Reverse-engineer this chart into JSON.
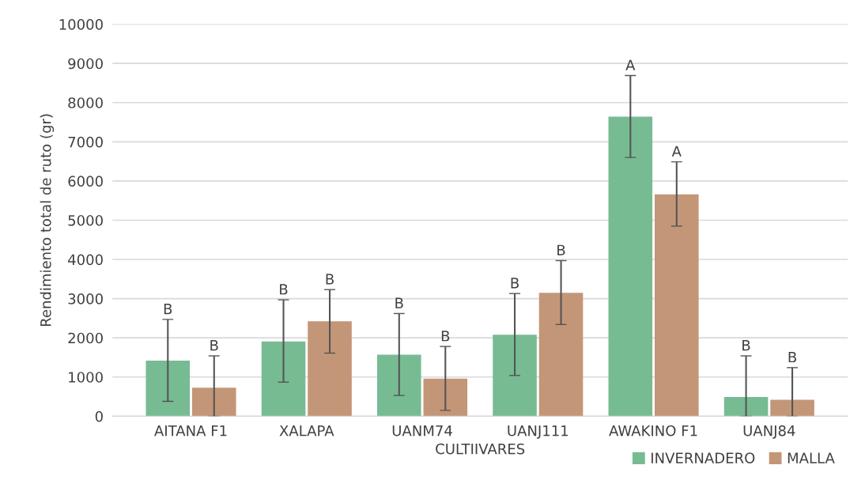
{
  "chart_data": {
    "type": "bar",
    "xlabel": "CULTIIVARES",
    "ylabel": "Rendimiento total de ruto (gr)",
    "categories": [
      "AITANA F1",
      "XALAPA",
      "UANM74",
      "UANJ111",
      "AWAKINO F1",
      "UANJ84"
    ],
    "series": [
      {
        "name": "INVERNADERO",
        "color": "#77bb93",
        "values": [
          1420,
          1910,
          1570,
          2080,
          7640,
          490
        ],
        "errors": [
          [
            380,
            2470
          ],
          [
            870,
            2970
          ],
          [
            530,
            2620
          ],
          [
            1040,
            3130
          ],
          [
            6600,
            8690
          ],
          [
            0,
            1540
          ]
        ]
      },
      {
        "name": "MALLA",
        "color": "#c39677",
        "values": [
          730,
          2420,
          960,
          3150,
          5660,
          420
        ],
        "errors": [
          [
            0,
            1540
          ],
          [
            1610,
            3230
          ],
          [
            150,
            1780
          ],
          [
            2340,
            3970
          ],
          [
            4850,
            6490
          ],
          [
            0,
            1240
          ]
        ]
      }
    ],
    "annotations": [
      "B",
      "B",
      "B",
      "B",
      "B",
      "B",
      "B",
      "B",
      "A",
      "A",
      "B",
      "B"
    ],
    "ylim": [
      0,
      10000
    ],
    "yticks": [
      0,
      1000,
      2000,
      3000,
      4000,
      5000,
      6000,
      7000,
      8000,
      9000,
      10000
    ],
    "grid": "y",
    "legend": "bottom right"
  }
}
